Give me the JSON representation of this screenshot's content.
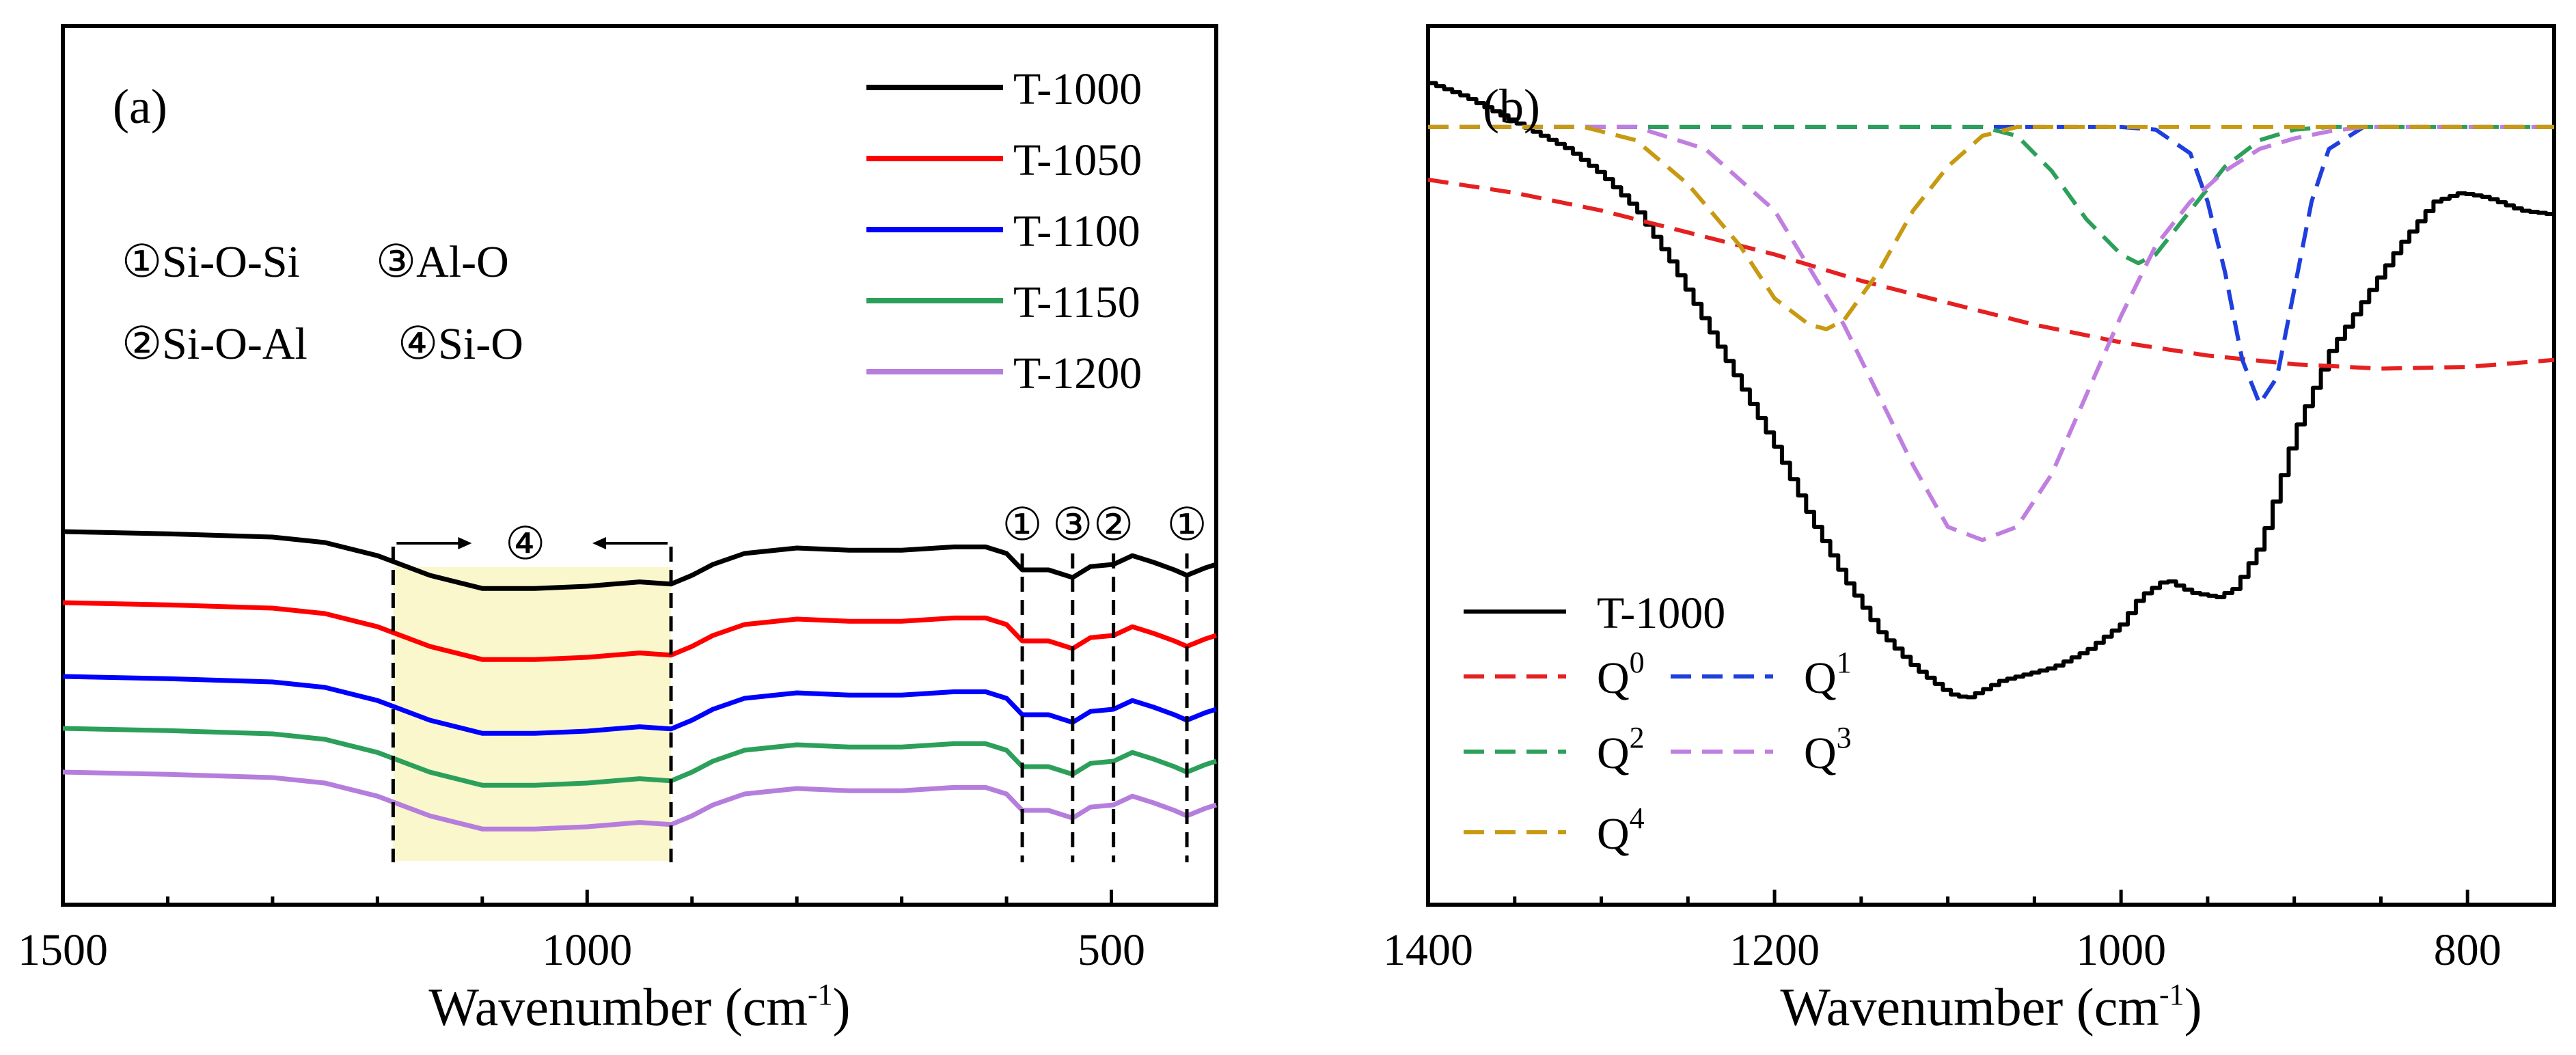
{
  "chart_data": [
    {
      "panel": "(a)",
      "type": "line",
      "xlabel": "Wavenumber (cm",
      "xlabel_sup": "-1",
      "xlabel_close": ")",
      "ylabel": "",
      "xlim": [
        1500,
        400
      ],
      "x_ticks": [
        "1500",
        "1000",
        "500"
      ],
      "legend": [
        "T-1000",
        "T-1050",
        "T-1100",
        "T-1150",
        "T-1200"
      ],
      "annotations": [
        "①Si-O-Si",
        "③Al-O",
        "②Si-O-Al",
        "④Si-O"
      ],
      "region_label": "④",
      "marker_labels": [
        "①",
        "③",
        "②",
        "①"
      ],
      "marker_positions": [
        585,
        537,
        498,
        428
      ],
      "region_range": [
        1185,
        920
      ],
      "series": [
        {
          "name": "T-1000",
          "color": "#000000",
          "offset": 0,
          "x": [
            1500,
            1400,
            1300,
            1250,
            1200,
            1150,
            1100,
            1050,
            1000,
            950,
            920,
            900,
            880,
            850,
            800,
            750,
            700,
            650,
            620,
            600,
            585,
            560,
            537,
            520,
            498,
            480,
            460,
            440,
            428,
            410,
            400
          ],
          "y": [
            0,
            2,
            5,
            10,
            22,
            40,
            52,
            52,
            50,
            46,
            48,
            40,
            30,
            20,
            15,
            17,
            17,
            14,
            14,
            20,
            35,
            35,
            42,
            32,
            30,
            22,
            28,
            35,
            40,
            33,
            30
          ]
        },
        {
          "name": "T-1050",
          "color": "#ff0000",
          "offset": 1,
          "x": [
            1500,
            1400,
            1300,
            1250,
            1200,
            1150,
            1100,
            1050,
            1000,
            950,
            920,
            900,
            880,
            850,
            800,
            750,
            700,
            650,
            620,
            600,
            585,
            560,
            537,
            520,
            498,
            480,
            460,
            440,
            428,
            410,
            400
          ],
          "y": [
            0,
            2,
            5,
            10,
            22,
            40,
            52,
            52,
            50,
            46,
            48,
            40,
            30,
            20,
            15,
            17,
            17,
            14,
            14,
            20,
            35,
            35,
            42,
            32,
            30,
            22,
            28,
            35,
            40,
            33,
            30
          ]
        },
        {
          "name": "T-1100",
          "color": "#0000ff",
          "offset": 2,
          "x": [
            1500,
            1400,
            1300,
            1250,
            1200,
            1150,
            1100,
            1050,
            1000,
            950,
            920,
            900,
            880,
            850,
            800,
            750,
            700,
            650,
            620,
            600,
            585,
            560,
            537,
            520,
            498,
            480,
            460,
            440,
            428,
            410,
            400
          ],
          "y": [
            0,
            2,
            5,
            10,
            22,
            40,
            52,
            52,
            50,
            46,
            48,
            40,
            30,
            20,
            15,
            17,
            17,
            14,
            14,
            20,
            35,
            35,
            42,
            32,
            30,
            22,
            28,
            35,
            40,
            33,
            30
          ]
        },
        {
          "name": "T-1150",
          "color": "#2ca05a",
          "offset": 3,
          "x": [
            1500,
            1400,
            1300,
            1250,
            1200,
            1150,
            1100,
            1050,
            1000,
            950,
            920,
            900,
            880,
            850,
            800,
            750,
            700,
            650,
            620,
            600,
            585,
            560,
            537,
            520,
            498,
            480,
            460,
            440,
            428,
            410,
            400
          ],
          "y": [
            0,
            2,
            5,
            10,
            22,
            40,
            52,
            52,
            50,
            46,
            48,
            40,
            30,
            20,
            15,
            17,
            17,
            14,
            14,
            20,
            35,
            35,
            42,
            32,
            30,
            22,
            28,
            35,
            40,
            33,
            30
          ]
        },
        {
          "name": "T-1200",
          "color": "#b57edc",
          "offset": 4,
          "x": [
            1500,
            1400,
            1300,
            1250,
            1200,
            1150,
            1100,
            1050,
            1000,
            950,
            920,
            900,
            880,
            850,
            800,
            750,
            700,
            650,
            620,
            600,
            585,
            560,
            537,
            520,
            498,
            480,
            460,
            440,
            428,
            410,
            400
          ],
          "y": [
            0,
            2,
            5,
            10,
            22,
            40,
            52,
            52,
            50,
            46,
            48,
            40,
            30,
            20,
            15,
            17,
            17,
            14,
            14,
            20,
            35,
            35,
            42,
            32,
            30,
            22,
            28,
            35,
            40,
            33,
            30
          ]
        }
      ]
    },
    {
      "panel": "(b)",
      "type": "line",
      "xlabel": "Wavenumber (cm",
      "xlabel_sup": "-1",
      "xlabel_close": ")",
      "ylabel": "",
      "xlim": [
        1400,
        750
      ],
      "ylim": [
        0,
        1
      ],
      "x_ticks": [
        "1400",
        "1200",
        "1000",
        "800"
      ],
      "x_tick_values": [
        1400,
        1200,
        1000,
        800
      ],
      "legend": [
        {
          "label": "T-1000",
          "base": "T-1000",
          "sup": ""
        },
        {
          "label": "Q0",
          "base": "Q",
          "sup": "0"
        },
        {
          "label": "Q1",
          "base": "Q",
          "sup": "1"
        },
        {
          "label": "Q2",
          "base": "Q",
          "sup": "2"
        },
        {
          "label": "Q3",
          "base": "Q",
          "sup": "3"
        },
        {
          "label": "Q4",
          "base": "Q",
          "sup": "4"
        }
      ],
      "series": [
        {
          "name": "T-1000",
          "color": "#000000",
          "style": "solid",
          "step": true,
          "x": [
            1400,
            1380,
            1350,
            1320,
            1300,
            1280,
            1260,
            1240,
            1220,
            1200,
            1180,
            1160,
            1140,
            1120,
            1100,
            1090,
            1080,
            1070,
            1060,
            1040,
            1020,
            1000,
            990,
            975,
            960,
            945,
            935,
            920,
            900,
            880,
            860,
            840,
            820,
            805,
            790,
            770,
            750
          ],
          "y": [
            0.935,
            0.92,
            0.89,
            0.86,
            0.83,
            0.79,
            0.73,
            0.66,
            0.59,
            0.52,
            0.44,
            0.37,
            0.31,
            0.27,
            0.24,
            0.235,
            0.245,
            0.255,
            0.26,
            0.27,
            0.29,
            0.32,
            0.35,
            0.37,
            0.355,
            0.35,
            0.36,
            0.41,
            0.54,
            0.63,
            0.69,
            0.75,
            0.8,
            0.81,
            0.805,
            0.79,
            0.785
          ]
        },
        {
          "name": "Q0",
          "color": "#e52020",
          "style": "dashed",
          "x": [
            1400,
            1350,
            1300,
            1250,
            1200,
            1150,
            1100,
            1050,
            1000,
            950,
            900,
            850,
            800,
            750
          ],
          "y": [
            0.825,
            0.81,
            0.79,
            0.765,
            0.74,
            0.71,
            0.685,
            0.66,
            0.64,
            0.625,
            0.615,
            0.61,
            0.612,
            0.62
          ]
        },
        {
          "name": "Q1",
          "color": "#1f3fdd",
          "style": "dashed",
          "x": [
            1400,
            1000,
            980,
            960,
            950,
            940,
            930,
            920,
            910,
            900,
            890,
            880,
            860,
            750
          ],
          "y": [
            0.885,
            0.885,
            0.882,
            0.855,
            0.8,
            0.72,
            0.62,
            0.57,
            0.6,
            0.7,
            0.8,
            0.86,
            0.885,
            0.885
          ]
        },
        {
          "name": "Q2",
          "color": "#2ca05a",
          "style": "dashed",
          "x": [
            1400,
            1080,
            1060,
            1040,
            1020,
            1000,
            990,
            980,
            960,
            940,
            920,
            900,
            880,
            750
          ],
          "y": [
            0.885,
            0.885,
            0.875,
            0.835,
            0.78,
            0.74,
            0.73,
            0.74,
            0.79,
            0.84,
            0.87,
            0.882,
            0.885,
            0.885
          ]
        },
        {
          "name": "Q3",
          "color": "#c07ee0",
          "style": "dashed",
          "x": [
            1400,
            1280,
            1240,
            1200,
            1160,
            1120,
            1100,
            1080,
            1060,
            1040,
            1020,
            1000,
            980,
            960,
            940,
            920,
            900,
            880,
            860,
            750
          ],
          "y": [
            0.885,
            0.885,
            0.86,
            0.79,
            0.66,
            0.5,
            0.43,
            0.415,
            0.43,
            0.49,
            0.58,
            0.67,
            0.75,
            0.8,
            0.835,
            0.86,
            0.872,
            0.88,
            0.885,
            0.885
          ]
        },
        {
          "name": "Q4",
          "color": "#c89a12",
          "style": "dashed",
          "x": [
            1400,
            1310,
            1280,
            1250,
            1220,
            1200,
            1180,
            1170,
            1160,
            1140,
            1120,
            1100,
            1080,
            1060,
            1040,
            750
          ],
          "y": [
            0.885,
            0.885,
            0.87,
            0.82,
            0.75,
            0.69,
            0.66,
            0.655,
            0.665,
            0.72,
            0.79,
            0.84,
            0.875,
            0.885,
            0.885,
            0.885
          ]
        }
      ]
    }
  ]
}
